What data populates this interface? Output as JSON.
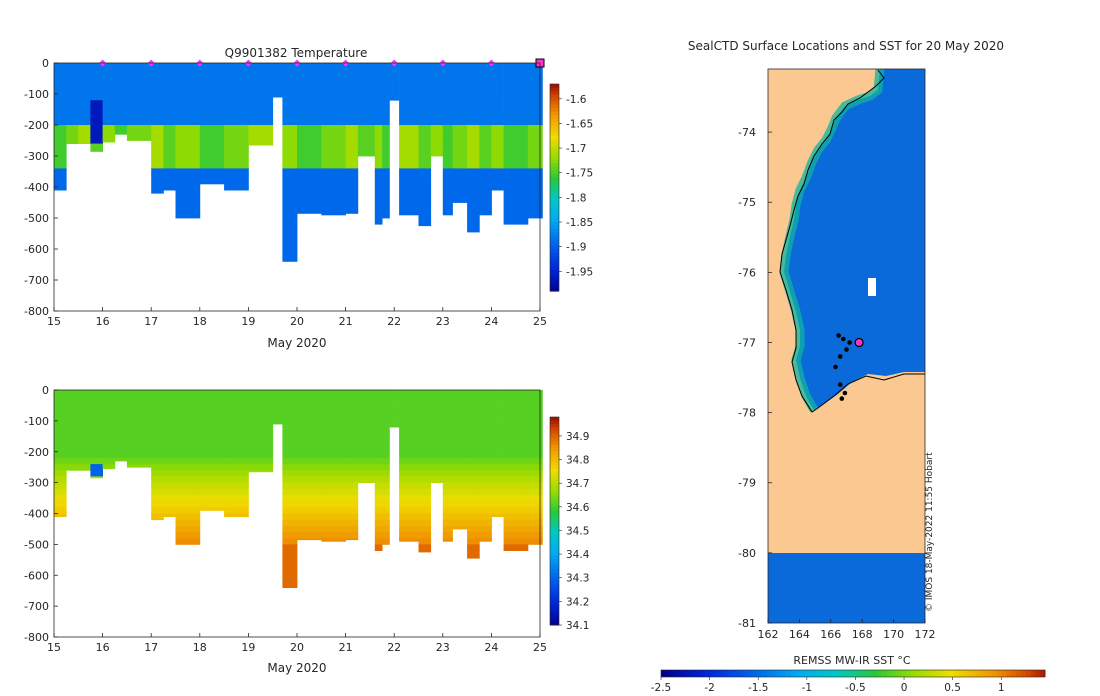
{
  "chart_data": [
    {
      "type": "heatmap",
      "title": "Q9901382  Temperature",
      "xlabel": "May 2020",
      "ylabel": "",
      "xlim": [
        15,
        25
      ],
      "ylim": [
        -800,
        0
      ],
      "x_ticks": [
        "15",
        "16",
        "17",
        "18",
        "19",
        "20",
        "21",
        "22",
        "23",
        "24",
        "25"
      ],
      "y_ticks": [
        "0",
        "-100",
        "-200",
        "-300",
        "-400",
        "-500",
        "-600",
        "-700",
        "-800"
      ],
      "profile_markers_day": [
        16,
        17,
        18,
        19,
        20,
        21,
        22,
        23,
        24
      ],
      "last_profile_day": 25,
      "colorbar": {
        "min": -1.99,
        "max": -1.57,
        "ticks": [
          "-1.6",
          "-1.65",
          "-1.7",
          "-1.75",
          "-1.8",
          "-1.85",
          "-1.9",
          "-1.95"
        ],
        "tick_values": [
          -1.6,
          -1.65,
          -1.7,
          -1.75,
          -1.8,
          -1.85,
          -1.9,
          -1.95
        ]
      },
      "profiles_start_day": [
        15.0,
        15.25,
        15.5,
        15.75,
        16.0,
        16.25,
        16.5,
        17.0,
        17.25,
        17.5,
        18.0,
        18.5,
        19.0,
        19.5,
        19.7,
        20.0,
        20.5,
        21.0,
        21.25,
        21.6,
        21.75,
        21.9,
        22.1,
        22.5,
        22.75,
        23.0,
        23.2,
        23.5,
        23.75,
        24.0,
        24.25,
        24.75
      ],
      "profiles_end_day": [
        15.25,
        15.5,
        15.75,
        16.0,
        16.25,
        16.5,
        17.0,
        17.25,
        17.5,
        18.0,
        18.5,
        19.0,
        19.5,
        19.7,
        20.0,
        20.5,
        21.0,
        21.25,
        21.6,
        21.75,
        21.9,
        22.1,
        22.5,
        22.75,
        23.0,
        23.2,
        23.5,
        23.75,
        24.0,
        24.25,
        24.75,
        25.05
      ],
      "profiles_max_depth_m": [
        -410,
        -260,
        -260,
        -285,
        -255,
        -230,
        -250,
        -420,
        -410,
        -500,
        -390,
        -410,
        -265,
        -110,
        -640,
        -485,
        -490,
        -485,
        -300,
        -520,
        -500,
        -120,
        -490,
        -525,
        -300,
        -490,
        -450,
        -545,
        -490,
        -410,
        -520,
        -500
      ],
      "temperature_summary": {
        "surface": -1.88,
        "mid_200_300m_min": -1.78,
        "deep": -1.89,
        "cold_anomaly_day": 15.8,
        "cold_anomaly_depth": [
          -110,
          -250
        ],
        "cold_anomaly_value": -1.96
      }
    },
    {
      "type": "heatmap",
      "title": "",
      "xlabel": "May 2020",
      "ylabel": "",
      "xlim": [
        15,
        25
      ],
      "ylim": [
        -800,
        0
      ],
      "x_ticks": [
        "15",
        "16",
        "17",
        "18",
        "19",
        "20",
        "21",
        "22",
        "23",
        "24",
        "25"
      ],
      "y_ticks": [
        "0",
        "-100",
        "-200",
        "-300",
        "-400",
        "-500",
        "-600",
        "-700",
        "-800"
      ],
      "colorbar": {
        "min": 34.1,
        "max": 34.98,
        "ticks": [
          "34.9",
          "34.8",
          "34.7",
          "34.6",
          "34.5",
          "34.4",
          "34.3",
          "34.2",
          "34.1"
        ],
        "tick_values": [
          34.9,
          34.8,
          34.7,
          34.6,
          34.5,
          34.4,
          34.3,
          34.2,
          34.1
        ]
      },
      "salinity_summary": {
        "surface": 34.62,
        "depth_300m": 34.72,
        "depth_500m": 34.88,
        "low_anomaly_day": 15.8,
        "low_anomaly_depth": -250,
        "low_anomaly_value": 34.3
      }
    },
    {
      "type": "heatmap",
      "title": "SealCTD Surface Locations and SST for 20 May 2020",
      "xlabel": "",
      "ylabel": "",
      "xlim": [
        162,
        172
      ],
      "ylim": [
        -81,
        -73.1
      ],
      "x_ticks": [
        "162",
        "164",
        "166",
        "168",
        "170",
        "172"
      ],
      "y_ticks": [
        "-74",
        "-75",
        "-76",
        "-77",
        "-78",
        "-79",
        "-80",
        "-81"
      ],
      "colorbar": {
        "label": "REMSS MW-IR SST °C",
        "min": -2.5,
        "max": 1.45,
        "ticks": [
          "-2.5",
          "-2",
          "-1.5",
          "-1",
          "-0.5",
          "0",
          "0.5",
          "1"
        ],
        "tick_values": [
          -2.5,
          -2,
          -1.5,
          -1,
          -0.5,
          0,
          0.5,
          1
        ]
      },
      "ocean_sst_c": -1.8,
      "latest_position": {
        "lon": 167.8,
        "lat": -77.0
      },
      "track_points": [
        [
          166.5,
          -76.9
        ],
        [
          166.8,
          -76.95
        ],
        [
          167.2,
          -77.0
        ],
        [
          167.0,
          -77.1
        ],
        [
          166.6,
          -77.2
        ],
        [
          166.3,
          -77.35
        ],
        [
          166.6,
          -77.6
        ],
        [
          166.9,
          -77.72
        ],
        [
          166.7,
          -77.8
        ]
      ],
      "credit": "© IMOS 18-May-2022 11:55 Hobart"
    }
  ]
}
